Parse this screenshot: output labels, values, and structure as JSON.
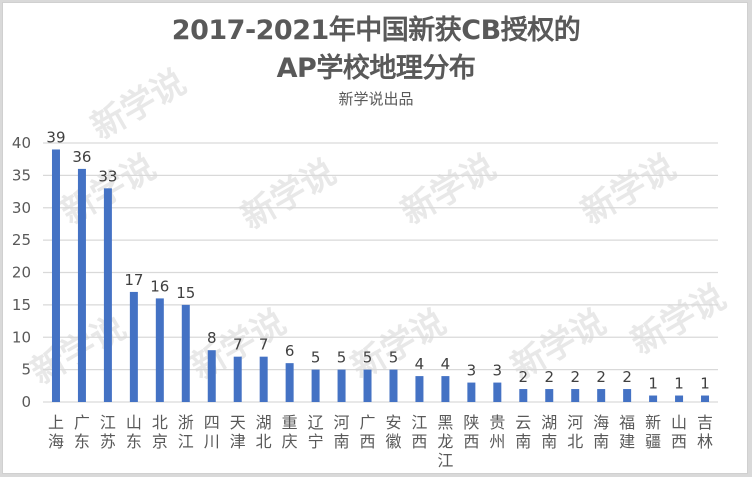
{
  "title_line1": "2017-2021年中国新获CB授权的",
  "title_line2": "AP学校地理分布",
  "subtitle": "新学说出品",
  "watermark": "新学说",
  "colors": {
    "bar": "#4472c4",
    "grid": "#d9d9d9",
    "text": "#595959"
  },
  "chart_data": {
    "type": "bar",
    "title": "2017-2021年中国新获CB授权的AP学校地理分布",
    "subtitle": "新学说出品",
    "xlabel": "",
    "ylabel": "",
    "ylim": [
      0,
      40
    ],
    "yticks": [
      0,
      5,
      10,
      15,
      20,
      25,
      30,
      35,
      40
    ],
    "grid": true,
    "legend": null,
    "data_labels": true,
    "categories": [
      "上海",
      "广东",
      "江苏",
      "山东",
      "北京",
      "浙江",
      "四川",
      "天津",
      "湖北",
      "重庆",
      "辽宁",
      "河南",
      "广西",
      "安徽",
      "江西",
      "黑龙江",
      "陕西",
      "贵州",
      "云南",
      "湖南",
      "河北",
      "海南",
      "福建",
      "新疆",
      "山西",
      "吉林"
    ],
    "values": [
      39,
      36,
      33,
      17,
      16,
      15,
      8,
      7,
      7,
      6,
      5,
      5,
      5,
      5,
      4,
      4,
      3,
      3,
      2,
      2,
      2,
      2,
      2,
      1,
      1,
      1
    ]
  }
}
